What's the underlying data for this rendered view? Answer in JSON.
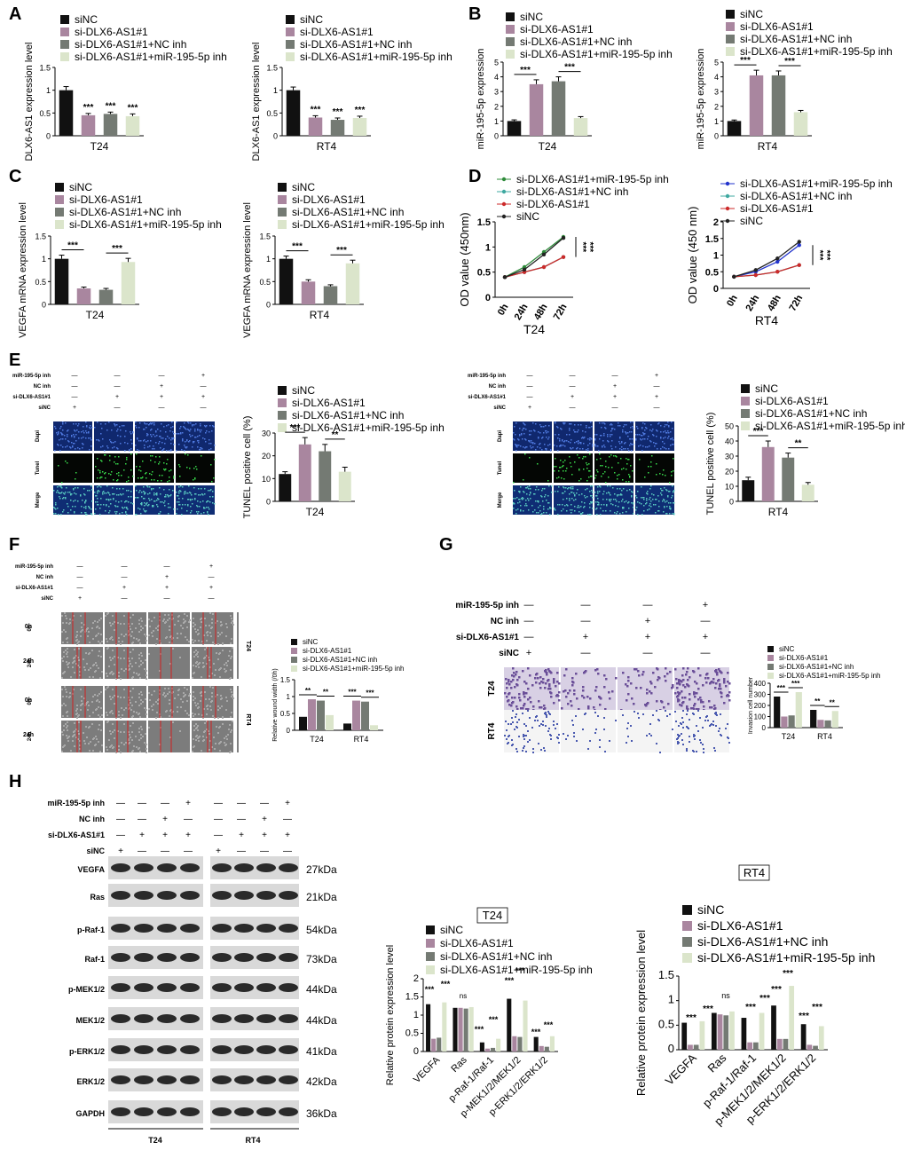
{
  "colors": {
    "siNC": "#111111",
    "si": "#a9869f",
    "nc": "#747a73",
    "mir": "#dbe5cb",
    "greenLine": "#2e8b3a",
    "cyanLine": "#3fa8a0",
    "redLine": "#cc2a2a",
    "blueLine": "#2233cc",
    "tunelBlue": "#1f46a8"
  },
  "panels": {
    "A": "A",
    "B": "B",
    "C": "C",
    "D": "D",
    "E": "E",
    "F": "F",
    "G": "G",
    "H": "H"
  },
  "legend_std": [
    "siNC",
    "si-DLX6-AS1#1",
    "si-DLX6-AS1#1+NC inh",
    "si-DLX6-AS1#1+miR-195-5p inh"
  ],
  "treat": {
    "rows": [
      "miR-195-5p inh",
      "NC inh",
      "si-DLX6-AS1#1",
      "siNC"
    ],
    "signs": [
      [
        "—",
        "—",
        "—",
        "+"
      ],
      [
        "—",
        "—",
        "+",
        "—"
      ],
      [
        "—",
        "+",
        "+",
        "+"
      ],
      [
        "+",
        "—",
        "—",
        "—"
      ]
    ]
  },
  "image_rows": {
    "tunel": [
      "Dapi",
      "Tunel",
      "Merge"
    ],
    "wound": [
      "0h",
      "24h"
    ],
    "cells": [
      "T24",
      "RT4"
    ]
  },
  "cell_lines": [
    "T24",
    "RT4"
  ],
  "markers": [
    "VEGFA",
    "Ras",
    "p-Raf-1",
    "Raf-1",
    "p-MEK1/2",
    "MEK1/2",
    "p-ERK1/2",
    "ERK1/2",
    "GAPDH"
  ],
  "kda": [
    "27kDa",
    "21kDa",
    "54kDa",
    "73kDa",
    "44kDa",
    "44kDa",
    "41kDa",
    "42kDa",
    "36kDa"
  ],
  "chart_data": [
    {
      "id": "A1",
      "type": "bar",
      "categories": [
        "siNC",
        "si-DLX6-AS1#1",
        "si-DLX6-AS1#1+NC inh",
        "si-DLX6-AS1#1+miR-195-5p inh"
      ],
      "values": [
        1.0,
        0.45,
        0.48,
        0.43
      ],
      "errors": [
        0.08,
        0.04,
        0.04,
        0.05
      ],
      "xlabel": "T24",
      "ylabel": "DLX6-AS1 expression level",
      "ylim": [
        0,
        1.5
      ],
      "ticks": [
        0,
        0.5,
        1.0,
        1.5
      ],
      "sig": [
        "***",
        "***",
        "***"
      ]
    },
    {
      "id": "A2",
      "type": "bar",
      "categories": [
        "siNC",
        "si-DLX6-AS1#1",
        "si-DLX6-AS1#1+NC inh",
        "si-DLX6-AS1#1+miR-195-5p inh"
      ],
      "values": [
        1.0,
        0.4,
        0.35,
        0.39
      ],
      "errors": [
        0.07,
        0.04,
        0.04,
        0.04
      ],
      "xlabel": "RT4",
      "ylabel": "DLX6-AS1 expression level",
      "ylim": [
        0,
        1.5
      ],
      "ticks": [
        0,
        0.5,
        1.0,
        1.5
      ],
      "sig": [
        "***",
        "***",
        "***"
      ]
    },
    {
      "id": "B1",
      "type": "bar",
      "categories": [
        "siNC",
        "si-DLX6-AS1#1",
        "si-DLX6-AS1#1+NC inh",
        "si-DLX6-AS1#1+miR-195-5p inh"
      ],
      "values": [
        1.0,
        3.5,
        3.7,
        1.2
      ],
      "errors": [
        0.08,
        0.3,
        0.3,
        0.1
      ],
      "xlabel": "T24",
      "ylabel": "miR-195-5p expression",
      "ylim": [
        0,
        5
      ],
      "ticks": [
        0,
        1,
        2,
        3,
        4,
        5
      ],
      "sig": [
        "***",
        "***"
      ]
    },
    {
      "id": "B2",
      "type": "bar",
      "categories": [
        "siNC",
        "si-DLX6-AS1#1",
        "si-DLX6-AS1#1+NC inh",
        "si-DLX6-AS1#1+miR-195-5p inh"
      ],
      "values": [
        1.0,
        4.1,
        4.1,
        1.6
      ],
      "errors": [
        0.07,
        0.35,
        0.3,
        0.12
      ],
      "xlabel": "RT4",
      "ylabel": "miR-195-5p expression",
      "ylim": [
        0,
        5
      ],
      "ticks": [
        0,
        1,
        2,
        3,
        4,
        5
      ],
      "sig": [
        "***",
        "***"
      ]
    },
    {
      "id": "C1",
      "type": "bar",
      "categories": [
        "siNC",
        "si-DLX6-AS1#1",
        "si-DLX6-AS1#1+NC inh",
        "si-DLX6-AS1#1+miR-195-5p inh"
      ],
      "values": [
        1.0,
        0.35,
        0.32,
        0.93
      ],
      "errors": [
        0.08,
        0.03,
        0.03,
        0.08
      ],
      "xlabel": "T24",
      "ylabel": "VEGFA mRNA expression level",
      "ylim": [
        0,
        1.5
      ],
      "ticks": [
        0,
        0.5,
        1.0,
        1.5
      ],
      "sig": [
        "***",
        "***"
      ]
    },
    {
      "id": "C2",
      "type": "bar",
      "categories": [
        "siNC",
        "si-DLX6-AS1#1",
        "si-DLX6-AS1#1+NC inh",
        "si-DLX6-AS1#1+miR-195-5p inh"
      ],
      "values": [
        1.0,
        0.5,
        0.4,
        0.9
      ],
      "errors": [
        0.06,
        0.04,
        0.03,
        0.07
      ],
      "xlabel": "RT4",
      "ylabel": "VEGFA mRNA expression level",
      "ylim": [
        0,
        1.5
      ],
      "ticks": [
        0,
        0.5,
        1.0,
        1.5
      ],
      "sig": [
        "***",
        "***"
      ]
    },
    {
      "id": "D1",
      "type": "line",
      "x": [
        "0h",
        "24h",
        "48h",
        "72h"
      ],
      "series": [
        {
          "name": "si-DLX6-AS1#1+miR-195-5p inh",
          "values": [
            0.4,
            0.6,
            0.9,
            1.2
          ]
        },
        {
          "name": "si-DLX6-AS1#1+NC inh",
          "values": [
            0.4,
            0.5,
            0.6,
            0.8
          ]
        },
        {
          "name": "si-DLX6-AS1#1",
          "values": [
            0.4,
            0.5,
            0.6,
            0.8
          ]
        },
        {
          "name": "siNC",
          "values": [
            0.4,
            0.55,
            0.85,
            1.18
          ]
        }
      ],
      "xlabel": "T24",
      "ylabel": "OD value (450nm)",
      "ylim": [
        0,
        1.5
      ],
      "ticks": [
        0,
        0.5,
        1.0,
        1.5
      ],
      "sig": [
        "***",
        "***"
      ]
    },
    {
      "id": "D2",
      "type": "line",
      "x": [
        "0h",
        "24h",
        "48h",
        "72h"
      ],
      "series": [
        {
          "name": "si-DLX6-AS1#1+miR-195-5p inh",
          "values": [
            0.35,
            0.5,
            0.8,
            1.3
          ]
        },
        {
          "name": "si-DLX6-AS1#1+NC inh",
          "values": [
            0.35,
            0.4,
            0.5,
            0.7
          ]
        },
        {
          "name": "si-DLX6-AS1#1",
          "values": [
            0.35,
            0.4,
            0.5,
            0.7
          ]
        },
        {
          "name": "siNC",
          "values": [
            0.35,
            0.55,
            0.9,
            1.4
          ]
        }
      ],
      "xlabel": "RT4",
      "ylabel": "OD value (450 nm)",
      "ylim": [
        0,
        2
      ],
      "ticks": [
        0,
        0.5,
        1.0,
        1.5,
        2.0
      ],
      "sig": [
        "***",
        "***"
      ]
    },
    {
      "id": "E1",
      "type": "bar",
      "categories": [
        "siNC",
        "si-DLX6-AS1#1",
        "si-DLX6-AS1#1+NC inh",
        "si-DLX6-AS1#1+miR-195-5p inh"
      ],
      "values": [
        12,
        25,
        22,
        13
      ],
      "errors": [
        1,
        3,
        3,
        2
      ],
      "xlabel": "T24",
      "ylabel": "TUNEL positive cell (%)",
      "ylim": [
        0,
        30
      ],
      "ticks": [
        0,
        10,
        20,
        30
      ],
      "sig": [
        "***",
        "**"
      ]
    },
    {
      "id": "E2",
      "type": "bar",
      "categories": [
        "siNC",
        "si-DLX6-AS1#1",
        "si-DLX6-AS1#1+NC inh",
        "si-DLX6-AS1#1+miR-195-5p inh"
      ],
      "values": [
        14,
        36,
        29,
        11
      ],
      "errors": [
        2,
        4,
        3,
        1.5
      ],
      "xlabel": "RT4",
      "ylabel": "TUNEL positive cell (%)",
      "ylim": [
        0,
        50
      ],
      "ticks": [
        0,
        10,
        20,
        30,
        40,
        50
      ],
      "sig": [
        "***",
        "**"
      ]
    },
    {
      "id": "F",
      "type": "bar",
      "categories": [
        "T24",
        "RT4"
      ],
      "series": [
        {
          "name": "siNC",
          "values": [
            0.4,
            0.2
          ]
        },
        {
          "name": "si-DLX6-AS1#1",
          "values": [
            0.92,
            0.88
          ]
        },
        {
          "name": "si-DLX6-AS1#1+NC inh",
          "values": [
            0.88,
            0.85
          ]
        },
        {
          "name": "si-DLX6-AS1#1+miR-195-5p inh",
          "values": [
            0.45,
            0.15
          ]
        }
      ],
      "ylabel": "Relative wound width (/0h)",
      "ylim": [
        0,
        1.5
      ],
      "ticks": [
        0,
        0.5,
        1.0,
        1.5
      ],
      "sig": [
        "**",
        "**",
        "***",
        "***"
      ]
    },
    {
      "id": "G",
      "type": "bar",
      "categories": [
        "T24",
        "RT4"
      ],
      "series": [
        {
          "name": "siNC",
          "values": [
            280,
            160
          ]
        },
        {
          "name": "si-DLX6-AS1#1",
          "values": [
            100,
            70
          ]
        },
        {
          "name": "si-DLX6-AS1#1+NC inh",
          "values": [
            110,
            65
          ]
        },
        {
          "name": "si-DLX6-AS1#1+miR-195-5p inh",
          "values": [
            320,
            150
          ]
        }
      ],
      "ylabel": "Invasion cell number",
      "ylim": [
        0,
        400
      ],
      "ticks": [
        0,
        100,
        200,
        300,
        400
      ],
      "sig": [
        "***",
        "***",
        "**",
        "**"
      ]
    },
    {
      "id": "H1",
      "type": "bar",
      "title": "T24",
      "categories": [
        "VEGFA",
        "Ras",
        "p-Raf-1/Raf-1",
        "p-MEK1/2/MEK1/2",
        "p-ERK1/2/ERK1/2"
      ],
      "series": [
        {
          "name": "siNC",
          "values": [
            1.3,
            1.2,
            0.25,
            1.45,
            0.4
          ]
        },
        {
          "name": "si-DLX6-AS1#1",
          "values": [
            0.35,
            1.2,
            0.08,
            0.42,
            0.15
          ]
        },
        {
          "name": "si-DLX6-AS1#1+NC inh",
          "values": [
            0.38,
            1.18,
            0.1,
            0.4,
            0.13
          ]
        },
        {
          "name": "si-DLX6-AS1#1+miR-195-5p inh",
          "values": [
            1.35,
            1.22,
            0.35,
            1.4,
            0.42
          ]
        }
      ],
      "ylabel": "Relative protein expression level",
      "ylim": [
        0,
        2.0
      ],
      "ticks": [
        0,
        0.5,
        1.0,
        1.5,
        2.0
      ]
    },
    {
      "id": "H2",
      "type": "bar",
      "title": "RT4",
      "categories": [
        "VEGFA",
        "Ras",
        "p-Raf-1/Raf-1",
        "p-MEK1/2/MEK1/2",
        "p-ERK1/2/ERK1/2"
      ],
      "series": [
        {
          "name": "siNC",
          "values": [
            0.55,
            0.75,
            0.65,
            0.9,
            0.52
          ]
        },
        {
          "name": "si-DLX6-AS1#1",
          "values": [
            0.1,
            0.72,
            0.15,
            0.22,
            0.1
          ]
        },
        {
          "name": "si-DLX6-AS1#1+NC inh",
          "values": [
            0.1,
            0.7,
            0.15,
            0.22,
            0.08
          ]
        },
        {
          "name": "si-DLX6-AS1#1+miR-195-5p inh",
          "values": [
            0.58,
            0.78,
            0.75,
            1.3,
            0.48
          ]
        }
      ],
      "ylabel": "Relative protein expression level",
      "ylim": [
        0,
        1.5
      ],
      "ticks": [
        0,
        0.5,
        1.0,
        1.5
      ]
    }
  ],
  "ns": "ns",
  "sig3": "***"
}
